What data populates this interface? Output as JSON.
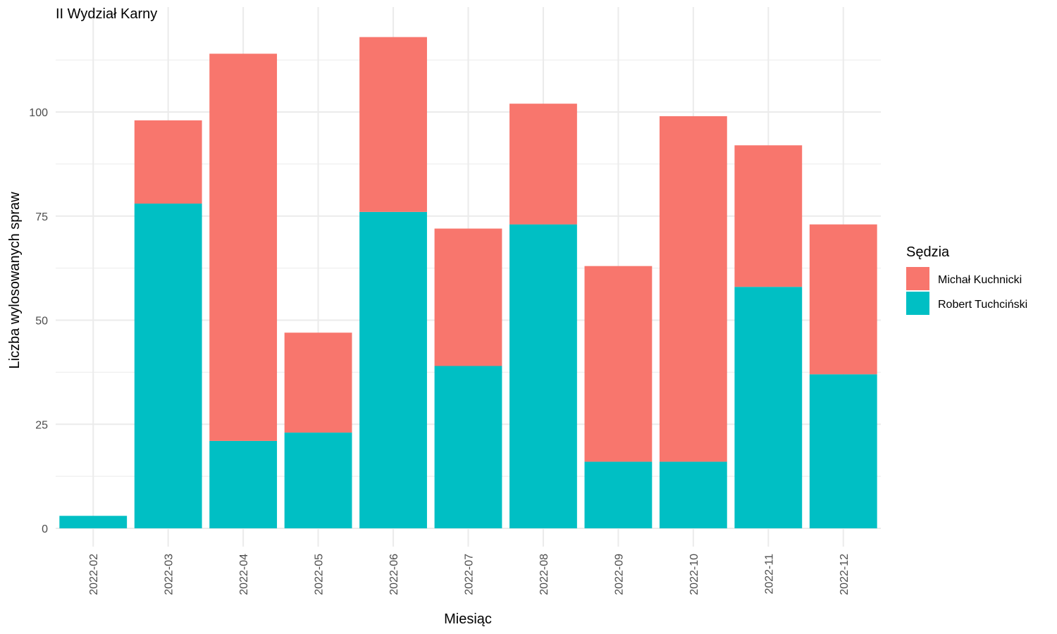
{
  "chart_data": {
    "type": "bar",
    "stacked": true,
    "title": "II Wydział Karny",
    "xlabel": "Miesiąc",
    "ylabel": "Liczba wylosowanych spraw",
    "categories": [
      "2022-02",
      "2022-03",
      "2022-04",
      "2022-05",
      "2022-06",
      "2022-07",
      "2022-08",
      "2022-09",
      "2022-10",
      "2022-11",
      "2022-12"
    ],
    "series": [
      {
        "name": "Robert Tuchciński",
        "color": "#00BFC4",
        "values": [
          3,
          78,
          21,
          23,
          76,
          39,
          73,
          16,
          16,
          58,
          37
        ]
      },
      {
        "name": "Michał Kuchnicki",
        "color": "#F8766D",
        "values": [
          0,
          20,
          93,
          24,
          42,
          33,
          29,
          47,
          83,
          34,
          36
        ]
      }
    ],
    "ylim": [
      0,
      120
    ],
    "yticks": [
      0,
      25,
      50,
      75,
      100
    ],
    "grid": true,
    "legend": {
      "title": "Sędzia",
      "position": "right",
      "entries": [
        {
          "label": "Michał Kuchnicki",
          "color": "#F8766D"
        },
        {
          "label": "Robert Tuchciński",
          "color": "#00BFC4"
        }
      ]
    }
  }
}
